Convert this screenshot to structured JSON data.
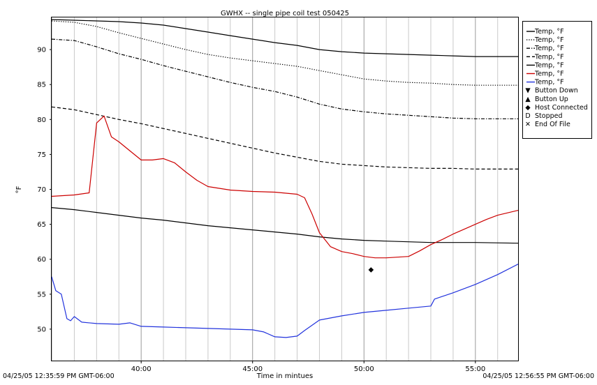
{
  "chart_data": {
    "type": "line",
    "title": "GWHX -- single pipe coil test 050425",
    "xlabel": "Time in mintues",
    "ylabel": "°F",
    "start_label": "04/25/05 12:35:59 PM GMT-06:00",
    "end_label": "04/25/05 12:56:55 PM GMT-06:00",
    "xlim": [
      "12:35:59",
      "12:56:55"
    ],
    "ylim": [
      45.5,
      94.6
    ],
    "x_ticks": [
      "40:00",
      "45:00",
      "50:00",
      "55:00"
    ],
    "y_ticks": [
      "50",
      "55",
      "60",
      "65",
      "70",
      "75",
      "80",
      "85",
      "90"
    ],
    "vertical_grid": true,
    "legend_position": "right",
    "series": [
      {
        "name": "Temp, °F",
        "color": "#000000",
        "style": "solid",
        "x": [
          "12:35:59",
          "12:37:00",
          "12:38:00",
          "12:39:00",
          "12:40:00",
          "12:41:00",
          "12:42:00",
          "12:43:00",
          "12:44:00",
          "12:45:00",
          "12:46:00",
          "12:47:00",
          "12:48:00",
          "12:49:00",
          "12:50:00",
          "12:51:00",
          "12:52:00",
          "12:53:00",
          "12:54:00",
          "12:55:00",
          "12:56:55"
        ],
        "values": [
          94.3,
          94.2,
          94.1,
          94.0,
          93.8,
          93.5,
          93.0,
          92.5,
          92.0,
          91.5,
          91.0,
          90.6,
          90.0,
          89.7,
          89.5,
          89.4,
          89.3,
          89.2,
          89.1,
          89.0,
          89.0
        ]
      },
      {
        "name": "Temp, °F",
        "color": "#000000",
        "style": "dotted",
        "x": [
          "12:35:59",
          "12:37:00",
          "12:38:00",
          "12:39:00",
          "12:40:00",
          "12:41:00",
          "12:42:00",
          "12:43:00",
          "12:44:00",
          "12:45:00",
          "12:46:00",
          "12:47:00",
          "12:48:00",
          "12:49:00",
          "12:50:00",
          "12:51:00",
          "12:52:00",
          "12:53:00",
          "12:54:00",
          "12:55:00",
          "12:56:55"
        ],
        "values": [
          94.1,
          93.9,
          93.3,
          92.4,
          91.6,
          90.8,
          90.0,
          89.3,
          88.8,
          88.4,
          88.0,
          87.6,
          87.0,
          86.4,
          85.8,
          85.5,
          85.3,
          85.2,
          85.0,
          84.9,
          84.9
        ]
      },
      {
        "name": "Temp, °F",
        "color": "#000000",
        "style": "dashdot",
        "x": [
          "12:35:59",
          "12:37:00",
          "12:38:00",
          "12:39:00",
          "12:40:00",
          "12:41:00",
          "12:42:00",
          "12:43:00",
          "12:44:00",
          "12:45:00",
          "12:46:00",
          "12:47:00",
          "12:48:00",
          "12:49:00",
          "12:50:00",
          "12:51:00",
          "12:52:00",
          "12:53:00",
          "12:54:00",
          "12:55:00",
          "12:56:55"
        ],
        "values": [
          91.5,
          91.3,
          90.4,
          89.4,
          88.6,
          87.7,
          86.9,
          86.1,
          85.3,
          84.6,
          84.0,
          83.2,
          82.2,
          81.5,
          81.1,
          80.8,
          80.6,
          80.4,
          80.2,
          80.1,
          80.1
        ]
      },
      {
        "name": "Temp, °F",
        "color": "#000000",
        "style": "dashed",
        "x": [
          "12:35:59",
          "12:37:00",
          "12:38:00",
          "12:39:00",
          "12:40:00",
          "12:41:00",
          "12:42:00",
          "12:43:00",
          "12:44:00",
          "12:45:00",
          "12:46:00",
          "12:47:00",
          "12:48:00",
          "12:49:00",
          "12:50:00",
          "12:51:00",
          "12:52:00",
          "12:53:00",
          "12:54:00",
          "12:55:00",
          "12:56:55"
        ],
        "values": [
          81.8,
          81.4,
          80.7,
          80.0,
          79.4,
          78.7,
          78.0,
          77.3,
          76.6,
          75.9,
          75.2,
          74.6,
          74.0,
          73.6,
          73.4,
          73.2,
          73.1,
          73.0,
          73.0,
          72.9,
          72.9
        ]
      },
      {
        "name": "Temp, °F",
        "color": "#000000",
        "style": "solid",
        "x": [
          "12:35:59",
          "12:37:00",
          "12:38:00",
          "12:39:00",
          "12:40:00",
          "12:41:00",
          "12:42:00",
          "12:43:00",
          "12:44:00",
          "12:45:00",
          "12:46:00",
          "12:47:00",
          "12:48:00",
          "12:49:00",
          "12:50:00",
          "12:51:00",
          "12:52:00",
          "12:53:00",
          "12:54:00",
          "12:55:00",
          "12:56:55"
        ],
        "values": [
          67.4,
          67.1,
          66.7,
          66.3,
          65.9,
          65.6,
          65.2,
          64.8,
          64.5,
          64.2,
          63.9,
          63.6,
          63.2,
          62.9,
          62.7,
          62.6,
          62.5,
          62.4,
          62.4,
          62.4,
          62.3
        ]
      },
      {
        "name": "Temp, °F",
        "color": "#cc0000",
        "style": "solid",
        "x": [
          "12:35:59",
          "12:37:00",
          "12:37:40",
          "12:38:00",
          "12:38:20",
          "12:38:40",
          "12:39:00",
          "12:39:30",
          "12:40:00",
          "12:40:30",
          "12:41:00",
          "12:41:30",
          "12:42:00",
          "12:42:30",
          "12:43:00",
          "12:44:00",
          "12:45:00",
          "12:46:00",
          "12:47:00",
          "12:47:20",
          "12:47:40",
          "12:48:00",
          "12:48:30",
          "12:49:00",
          "12:49:30",
          "12:50:00",
          "12:50:30",
          "12:51:00",
          "12:51:30",
          "12:52:00",
          "12:52:30",
          "12:53:00",
          "12:53:30",
          "12:54:00",
          "12:54:30",
          "12:55:00",
          "12:55:30",
          "12:56:00",
          "12:56:55"
        ],
        "values": [
          69.0,
          69.2,
          69.5,
          79.5,
          80.5,
          77.5,
          76.8,
          75.5,
          74.2,
          74.2,
          74.4,
          73.8,
          72.5,
          71.3,
          70.4,
          69.9,
          69.7,
          69.6,
          69.3,
          68.8,
          66.5,
          63.8,
          61.8,
          61.1,
          60.8,
          60.4,
          60.2,
          60.2,
          60.3,
          60.4,
          61.2,
          62.1,
          62.8,
          63.6,
          64.3,
          65.0,
          65.7,
          66.3,
          67.0
        ]
      },
      {
        "name": "Temp, °F",
        "color": "#2233dd",
        "style": "solid",
        "x": [
          "12:35:59",
          "12:36:10",
          "12:36:25",
          "12:36:40",
          "12:36:50",
          "12:37:00",
          "12:37:20",
          "12:38:00",
          "12:39:00",
          "12:39:30",
          "12:40:00",
          "12:41:00",
          "12:42:00",
          "12:43:00",
          "12:44:00",
          "12:45:00",
          "12:45:30",
          "12:46:00",
          "12:46:30",
          "12:47:00",
          "12:47:20",
          "12:48:00",
          "12:49:00",
          "12:50:00",
          "12:51:00",
          "12:52:00",
          "12:53:00",
          "12:53:10",
          "12:54:00",
          "12:55:00",
          "12:56:00",
          "12:56:55"
        ],
        "values": [
          57.5,
          55.5,
          55.0,
          51.5,
          51.2,
          51.8,
          51.0,
          50.8,
          50.7,
          50.9,
          50.4,
          50.3,
          50.2,
          50.1,
          50.0,
          49.9,
          49.6,
          48.9,
          48.8,
          49.0,
          49.8,
          51.3,
          51.9,
          52.4,
          52.7,
          53.0,
          53.3,
          54.3,
          55.2,
          56.4,
          57.8,
          59.3
        ]
      }
    ],
    "events": [
      {
        "name": "Button Down",
        "marker": "▼"
      },
      {
        "name": "Button Up",
        "marker": "▲"
      },
      {
        "name": "Host Connected",
        "marker": "◆",
        "points": [
          {
            "x": "12:50:19",
            "y": 58.6
          }
        ]
      },
      {
        "name": "Stopped",
        "marker": "D"
      },
      {
        "name": "End Of File",
        "marker": "✕"
      }
    ]
  }
}
